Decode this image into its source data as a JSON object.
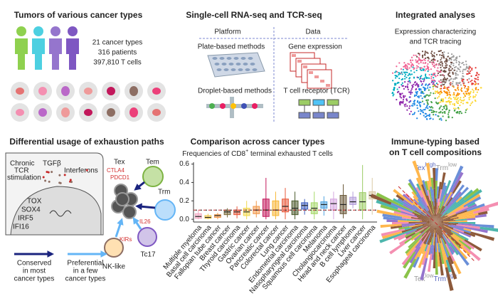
{
  "panels": {
    "tumors": {
      "title": "Tumors of various cancer types",
      "stats": [
        "21 cancer types",
        "316 patients",
        "397,810 T cells"
      ]
    },
    "sequencing": {
      "title": "Single-cell RNA-seq and TCR-seq",
      "platform_header": "Platform",
      "data_header": "Data",
      "platforms": [
        "Plate-based methods",
        "Droplet-based methods"
      ],
      "data_types": [
        "Gene expression",
        "T cell receptor (TCR)"
      ]
    },
    "integrated": {
      "title": "Integrated analyses",
      "subtitle_lines": [
        "Expression characterizing",
        "and TCR tracing"
      ]
    },
    "exhaustion": {
      "title": "Differential usage of exhaustion paths",
      "stimulation": [
        "Chronic",
        "TCR",
        "stimulation"
      ],
      "tgfb": "TGFβ",
      "interferons": "Interferons",
      "factors": [
        "TOX",
        "SOX4",
        "IRF5",
        "IFI16"
      ],
      "cells": {
        "tex": "Tex",
        "tem": "Tem",
        "trm": "Trm",
        "tc17": "Tc17",
        "nk_like": "NK-like"
      },
      "genes": {
        "ctla4": "CTLA4",
        "pdcd1": "PDCD1",
        "il26": "IL26",
        "kirs": "KIRs"
      },
      "legend": {
        "conserved": [
          "Conserved",
          "in most",
          "cancer types"
        ],
        "preferential": [
          "Preferential",
          "in a few",
          "cancer types"
        ]
      }
    },
    "immune_typing": {
      "title_lines": [
        "Immune-typing based",
        "on T cell compositions"
      ],
      "top_label": {
        "tex": "Tex",
        "tex_level": "high",
        "trm": "Trm",
        "trm_level": "low"
      },
      "bottom_label": {
        "tex": "Tex",
        "tex_level": "low",
        "trm": "Trm",
        "trm_level": "high"
      }
    }
  },
  "chart_data": {
    "type": "box",
    "title": "Comparison across cancer types",
    "subtitle": "Frequencies of CD8",
    "subtitle_superscript": "+",
    "subtitle_end": " terminal exhausted T cells",
    "categories": [
      "Multiple myeloma",
      "Basal cell carcinoma",
      "Fallopian tube cancer",
      "Breast cancer",
      "Thyroid carcinoma",
      "Gastric cancer",
      "Ovarian cancer",
      "Pancreatic cancer",
      "Colorectal cancer",
      "Lung cancer",
      "Endometrial carcinoma",
      "Nasopharyngeal carcinoma",
      "Squamous cell carcinoma",
      "Melanoma",
      "Cholangiocarcinoma",
      "Head and neck cancer",
      "B cell lymphoma",
      "Liver cancer",
      "Esophageal carcinoma"
    ],
    "min": [
      0,
      0,
      0,
      0.02,
      0.01,
      0,
      0.02,
      0,
      0,
      0,
      0,
      0.05,
      0,
      0.04,
      0,
      0.01,
      0.12,
      0,
      0.05
    ],
    "q1": [
      0.01,
      0.01,
      0.02,
      0.05,
      0.05,
      0.04,
      0.06,
      0.03,
      0.04,
      0.08,
      0.05,
      0.11,
      0.06,
      0.12,
      0.1,
      0.06,
      0.16,
      0.1,
      0.22
    ],
    "median": [
      0.03,
      0.02,
      0.04,
      0.08,
      0.08,
      0.08,
      0.1,
      0.1,
      0.1,
      0.14,
      0.12,
      0.15,
      0.12,
      0.16,
      0.17,
      0.16,
      0.19,
      0.19,
      0.26
    ],
    "q3": [
      0.06,
      0.04,
      0.05,
      0.1,
      0.1,
      0.12,
      0.14,
      0.22,
      0.2,
      0.22,
      0.2,
      0.18,
      0.18,
      0.19,
      0.22,
      0.26,
      0.24,
      0.29,
      0.3
    ],
    "max": [
      0.1,
      0.06,
      0.07,
      0.12,
      0.14,
      0.2,
      0.2,
      0.45,
      0.3,
      0.34,
      0.3,
      0.22,
      0.3,
      0.25,
      0.3,
      0.38,
      0.3,
      0.59,
      0.45
    ],
    "colors": [
      "#f4a6c0",
      "#f2c94c",
      "#f2994a",
      "#7b6b3a",
      "#e8583a",
      "#f2d94c",
      "#f2994a",
      "#c2185b",
      "#f7b733",
      "#e8583a",
      "#4a5a2a",
      "#3f5fbf",
      "#a6d96a",
      "#4fa3e0",
      "#d6a6e0",
      "#6b5a3a",
      "#b39ddb",
      "#9ccc65",
      "#d9c9a3"
    ],
    "reference_line": 0.1,
    "ylim": [
      -0.03,
      0.62
    ],
    "yticks": [
      {
        "value": 0,
        "label": "0.0"
      },
      0.2,
      0.4,
      0.6
    ]
  }
}
